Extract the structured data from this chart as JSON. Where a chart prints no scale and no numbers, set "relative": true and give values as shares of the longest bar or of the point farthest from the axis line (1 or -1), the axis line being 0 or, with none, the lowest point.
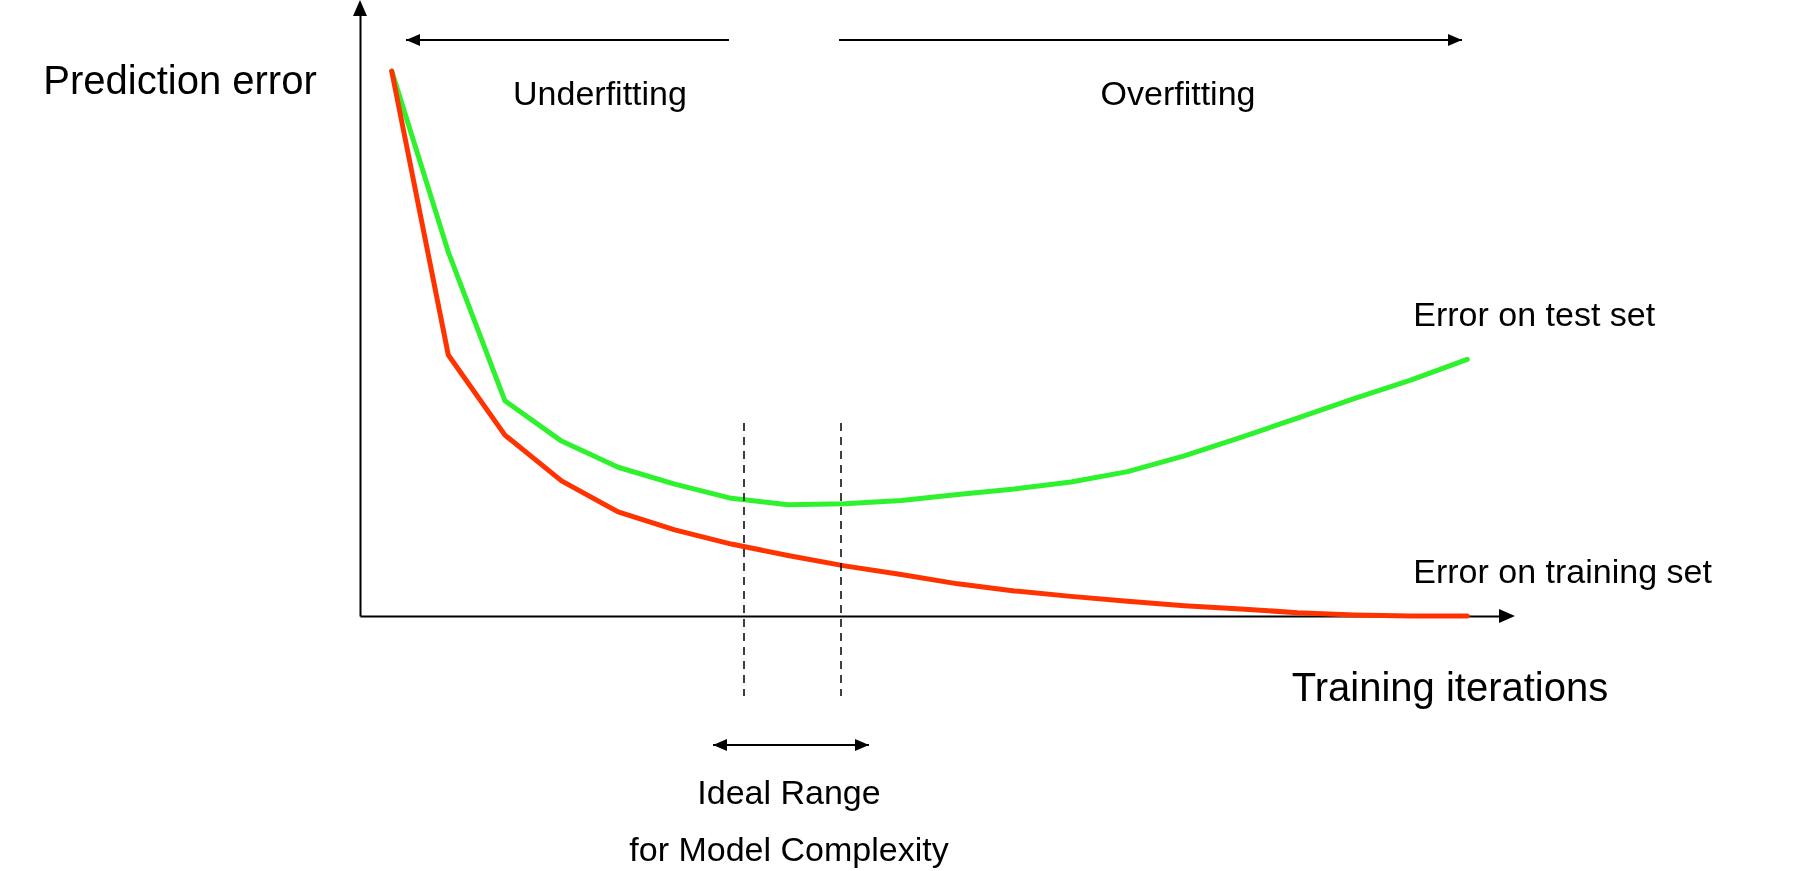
{
  "chart_data": {
    "type": "line",
    "relative": true,
    "xlabel": "Training iterations",
    "ylabel": "Prediction error",
    "categories": [
      null,
      null,
      null,
      null,
      null,
      null,
      null,
      null,
      null,
      null,
      null,
      null,
      null,
      null,
      null,
      null,
      null,
      null,
      null,
      null
    ],
    "series": [
      {
        "name": "Error on test set",
        "color": "#2ef22e",
        "values": [
          1,
          0.668,
          0.395,
          0.321,
          0.273,
          0.242,
          0.216,
          0.204,
          0.206,
          0.212,
          0.223,
          0.233,
          0.246,
          0.265,
          0.294,
          0.328,
          0.363,
          0.399,
          0.433,
          0.471
        ]
      },
      {
        "name": "Error on training set",
        "color": "#ff3300",
        "values": [
          1,
          0.479,
          0.332,
          0.248,
          0.191,
          0.158,
          0.132,
          0.111,
          0.092,
          0.076,
          0.059,
          0.046,
          0.036,
          0.027,
          0.019,
          0.013,
          0.006,
          0.002,
          0,
          0
        ]
      }
    ],
    "annotations": [
      "Underfitting",
      "Overfitting",
      "Ideal Range\nfor Model Complexity"
    ]
  }
}
